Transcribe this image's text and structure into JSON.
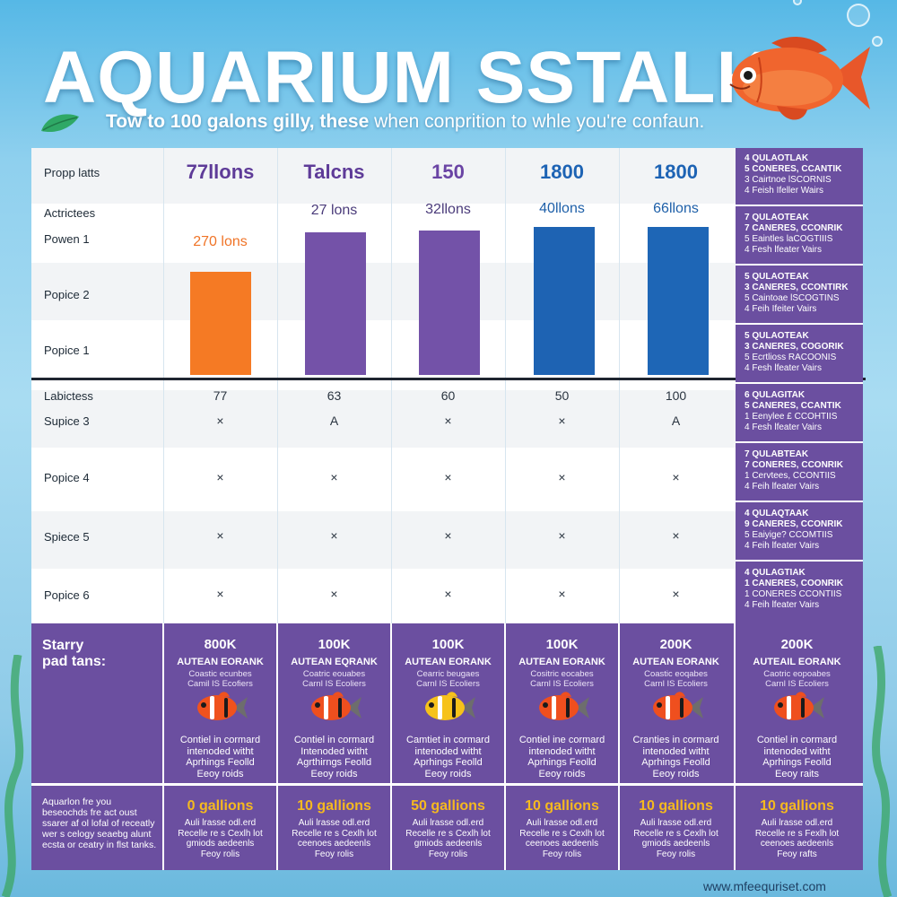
{
  "header": {
    "title": "AQUARIUM SSTALK",
    "subtitle_bold": "Tow to 100 galons gilly, these",
    "subtitle_rest": " when conprition to whle you're confaun."
  },
  "table": {
    "row_labels": [
      "Propp latts",
      "Actrictees",
      "Powen 1",
      "Popice 2",
      "Popice 1",
      "Labictess",
      "Supice 3",
      "Popice 4",
      "Spiece 5",
      "Popice 6"
    ],
    "columns": [
      {
        "head": "77llons",
        "head_color": "#5e3b98",
        "bar_label": "270 lons",
        "bar_label_color": "#f07427",
        "bar_color": "#f57a24",
        "bar_level": 0.62,
        "value": "77",
        "marks": [
          "×",
          "×",
          "×",
          "×"
        ]
      },
      {
        "head": "Talcns",
        "head_color": "#5e3b98",
        "bar_label": "27 lons",
        "bar_label_color": "#4a3b7a",
        "bar_color": "#7452a8",
        "bar_level": 0.86,
        "value": "63",
        "marks": [
          "A",
          "×",
          "×",
          "×"
        ]
      },
      {
        "head": "150",
        "head_color": "#6a44a4",
        "bar_label": "32llons",
        "bar_label_color": "#4a3b7a",
        "bar_color": "#7352a8",
        "bar_level": 0.87,
        "value": "60",
        "marks": [
          "×",
          "×",
          "×",
          "×"
        ]
      },
      {
        "head": "1800",
        "head_color": "#1d63b4",
        "bar_label": "40llons",
        "bar_label_color": "#1d5fa8",
        "bar_color": "#1e63b3",
        "bar_level": 0.89,
        "value": "50",
        "marks": [
          "×",
          "×",
          "×",
          "×"
        ]
      },
      {
        "head": "1800",
        "head_color": "#1d63b4",
        "bar_label": "66llons",
        "bar_label_color": "#1d5fa8",
        "bar_color": "#1e66b6",
        "bar_level": 0.89,
        "value": "100",
        "marks": [
          "A",
          "×",
          "×",
          "×"
        ]
      }
    ],
    "side_cells": [
      {
        "l1": "4 QULAOTLAK",
        "l2": "5 CONERES, CCANTIK",
        "l3": "3 Cairtnoe lSCORNIS",
        "l4": "4 Feish Ifeller Wairs"
      },
      {
        "l1": "7 QULAOTEAK",
        "l2": "7 CANERES, CCONRIK",
        "l3": "5 Eaintles laCOGTIIIS",
        "l4": "4 Fesh lfeater Vairs"
      },
      {
        "l1": "5 QULAOTEAK",
        "l2": "3 CANERES, CCONTIRK",
        "l3": "5 Caintoae lSCOGTINS",
        "l4": "4 Feih Ifeiter Vairs"
      },
      {
        "l1": "5 QULAOTEAK",
        "l2": "3 CANERES, COGORIK",
        "l3": "5 Ecrtlioss RACOONIS",
        "l4": "4 Fesh lfeater Vairs"
      },
      {
        "l1": "6 QULAGITAK",
        "l2": "5 CANERES, CCANTIK",
        "l3": "1 Eenylee £ CCOHTIIS",
        "l4": "4 Fesh lfeater Vairs"
      },
      {
        "l1": "7 QULABTEAK",
        "l2": "7 CONERES, CCONRIK",
        "l3": "1 Cervtees, CCONTIIS",
        "l4": "4 Feih lfeater Vairs"
      },
      {
        "l1": "4 QULAQTAAK",
        "l2": "9 CANERES, CCONRIK",
        "l3": "5 Eaiyige? CCOMTIIS",
        "l4": "4 Feih lfeater Vairs"
      },
      {
        "l1": "4 QULAGTIAK",
        "l2": "1 CANERES, COONRIK",
        "l3": "1 CONERES CCONTIIS",
        "l4": "4 Feih lfeater Vairs"
      }
    ]
  },
  "cards": {
    "starry_line1": "Starry",
    "starry_line2": "pad tans:",
    "items": [
      {
        "price": "800K",
        "name": "AUTEAN EORANK",
        "sub1": "Coastic ecunbes",
        "sub2": "Camil IS Ecofiers",
        "fish_body": "#f0521d",
        "desc1": "Contiel in cormard",
        "desc2": "intenoded witht",
        "desc3": "Aprhings Feolld",
        "desc4": "Eeoy roids",
        "gallons": "0 gallions",
        "gdesc1": "Auli lrasse odl.erd",
        "gdesc2": "Recelle re s Cexlh lot",
        "gdesc3": "gmiods aedeenls",
        "gdesc4": "Feoy rolis"
      },
      {
        "price": "100K",
        "name": "AUTEAN EQRANK",
        "sub1": "Coatric eouabes",
        "sub2": "Carnl IS Ecoliers",
        "fish_body": "#ef4f1e",
        "desc1": "Contiel in cormard",
        "desc2": "Intenoded witht",
        "desc3": "Agrthirngs Feolld",
        "desc4": "Eeoy roids",
        "gallons": "10 gallions",
        "gdesc1": "Auli lrasse odl.erd",
        "gdesc2": "Recelle re s Cexlh lot",
        "gdesc3": "ceenoes aedeenls",
        "gdesc4": "Feoy rolis"
      },
      {
        "price": "100K",
        "name": "AUTEAN EORANK",
        "sub1": "Cearric beugaes",
        "sub2": "Carnl IS Ecoliers",
        "fish_body": "#f6c21a",
        "desc1": "Camtiet in cormard",
        "desc2": "intenoded witht",
        "desc3": "Aprhings Feolld",
        "desc4": "Eeoy roids",
        "gallons": "50 gallions",
        "gdesc1": "Auli lrasse odl.erd",
        "gdesc2": "Recelle re s Cexlh lot",
        "gdesc3": "gmiods aedeenls",
        "gdesc4": "Feoy rolis"
      },
      {
        "price": "100K",
        "name": "AUTEAN EORANK",
        "sub1": "Cositric eocabes",
        "sub2": "Carnl IS Ecoliers",
        "fish_body": "#ef4f1e",
        "desc1": "Contiel ine cormard",
        "desc2": "intenoded witht",
        "desc3": "Aprhings Feolld",
        "desc4": "Eeoy roids",
        "gallons": "10 gallions",
        "gdesc1": "Auli lrasse odl.erd",
        "gdesc2": "Recelle re s Cexlh lot",
        "gdesc3": "ceenoes aedeenls",
        "gdesc4": "Feoy rolis"
      },
      {
        "price": "200K",
        "name": "AUTEAN EORANK",
        "sub1": "Coastic eoqabes",
        "sub2": "Carnl IS Ecoliers",
        "fish_body": "#ef4f1e",
        "desc1": "Cranties in cormard",
        "desc2": "intenoded witht",
        "desc3": "Aprhings Feolld",
        "desc4": "Eeoy roids",
        "gallons": "10 gallions",
        "gdesc1": "Auli lrasse odl.erd",
        "gdesc2": "Recelle re s Cexlh lot",
        "gdesc3": "gmiods aedeenls",
        "gdesc4": "Feoy rolis"
      },
      {
        "price": "200K",
        "name": "AUTEAIL EORANK",
        "sub1": "Caotric eopoabes",
        "sub2": "Carnl IS Ecoliers",
        "fish_body": "#ef4f1e",
        "desc1": "Contiel in cormard",
        "desc2": "intenoded witht",
        "desc3": "Aprhings Feolld",
        "desc4": "Eeoy raits",
        "gallons": "10 gallions",
        "gdesc1": "Auli lrasse odl.erd",
        "gdesc2": "Recelle re s Fexlh lot",
        "gdesc3": "ceenoes aedeenls",
        "gdesc4": "Feoy rafts"
      }
    ],
    "aqua_desc": "Aquarlon fre you beseochds fre act oust ssarer af ol lofal of receatly wer s celogy seaebg alunt ecsta or ceatry in flst tanks."
  },
  "footer": {
    "url": "www.mfeequriset.com"
  }
}
